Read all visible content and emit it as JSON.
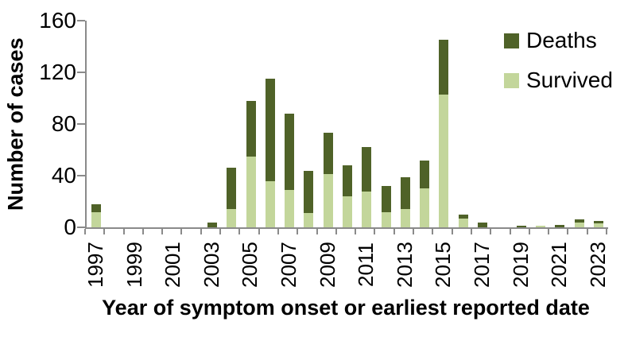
{
  "chart_data": {
    "type": "bar",
    "stacked": true,
    "title": "",
    "xlabel": "Year of symptom onset or earliest reported date",
    "ylabel": "Number of cases",
    "ylim": [
      0,
      160
    ],
    "yticks": [
      0,
      40,
      80,
      120,
      160
    ],
    "grid": "off",
    "legend_position": "top-right",
    "axis_color": "#8a8a8a",
    "text_color": "#000000",
    "xtick_label_every": 2,
    "categories": [
      "1997",
      "1998",
      "1999",
      "2000",
      "2001",
      "2002",
      "2003",
      "2004",
      "2005",
      "2006",
      "2007",
      "2008",
      "2009",
      "2010",
      "2011",
      "2012",
      "2013",
      "2014",
      "2015",
      "2016",
      "2017",
      "2018",
      "2019",
      "2020",
      "2021",
      "2022",
      "2023"
    ],
    "series": [
      {
        "name": "Deaths",
        "color": "#4f6228",
        "values": [
          6,
          0,
          0,
          0,
          0,
          0,
          4,
          32,
          43,
          79,
          59,
          33,
          32,
          24,
          34,
          20,
          25,
          22,
          42,
          3,
          4,
          0,
          1,
          0,
          2,
          2,
          2
        ]
      },
      {
        "name": "Survived",
        "color": "#c3d69b",
        "values": [
          12,
          0,
          0,
          0,
          0,
          0,
          0,
          14,
          55,
          36,
          29,
          11,
          41,
          24,
          28,
          12,
          14,
          30,
          103,
          7,
          0,
          0,
          0,
          1,
          0,
          4,
          3
        ]
      }
    ],
    "totals": [
      18,
      0,
      0,
      0,
      0,
      0,
      4,
      46,
      98,
      115,
      88,
      44,
      73,
      48,
      62,
      32,
      39,
      52,
      145,
      10,
      4,
      0,
      1,
      1,
      2,
      6,
      5
    ]
  }
}
